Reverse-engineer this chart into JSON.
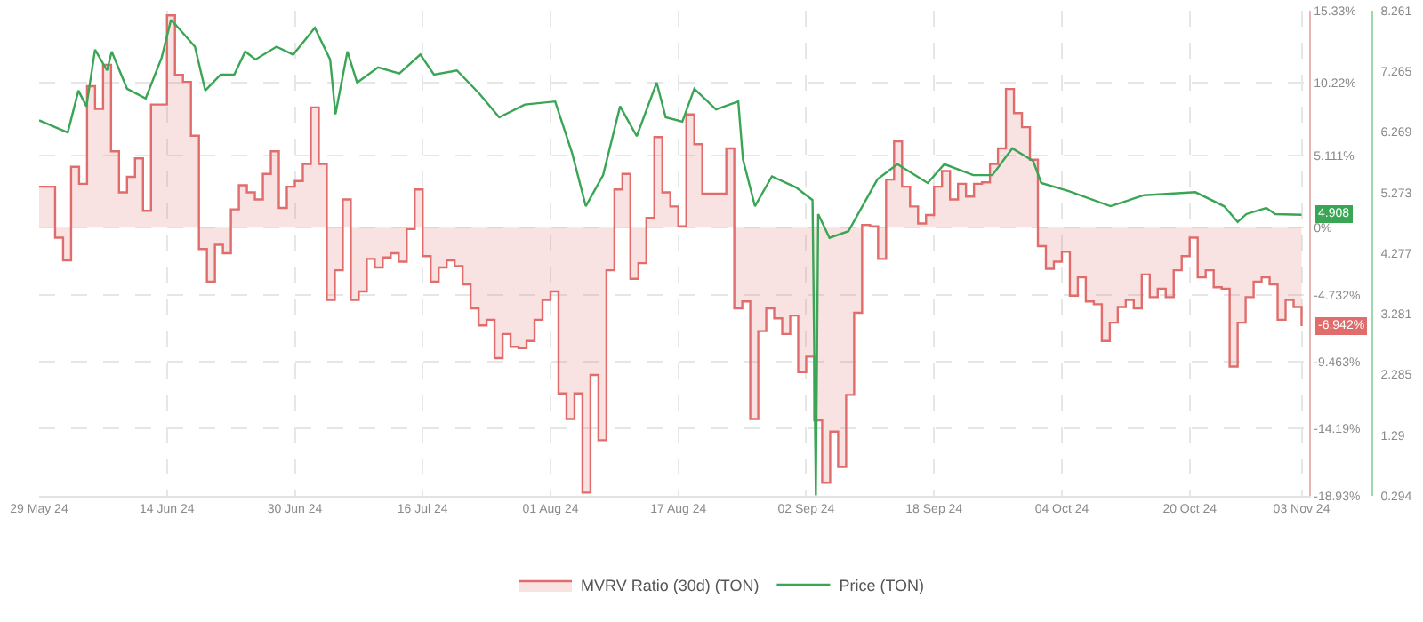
{
  "chart_data": {
    "type": "line",
    "legend": "bottom",
    "grid": true,
    "marker": "none",
    "xlim": [
      "2024-05-29",
      "2024-11-04"
    ],
    "xticks": [
      {
        "value": "2024-05-29",
        "label": "29 May 24"
      },
      {
        "value": "2024-06-14",
        "label": "14 Jun 24"
      },
      {
        "value": "2024-06-30",
        "label": "30 Jun 24"
      },
      {
        "value": "2024-07-16",
        "label": "16 Jul 24"
      },
      {
        "value": "2024-08-01",
        "label": "01 Aug 24"
      },
      {
        "value": "2024-08-17",
        "label": "17 Aug 24"
      },
      {
        "value": "2024-09-02",
        "label": "02 Sep 24"
      },
      {
        "value": "2024-09-18",
        "label": "18 Sep 24"
      },
      {
        "value": "2024-10-04",
        "label": "04 Oct 24"
      },
      {
        "value": "2024-10-20",
        "label": "20 Oct 24"
      },
      {
        "value": "2024-11-03",
        "label": "03 Nov 24"
      }
    ],
    "ylim": [
      -18.93,
      15.33
    ],
    "yticks": [
      {
        "value": 15.33,
        "label": "15.33%"
      },
      {
        "value": 10.22,
        "label": "10.22%"
      },
      {
        "value": 5.111,
        "label": "5.111%"
      },
      {
        "value": 0,
        "label": "0%"
      },
      {
        "value": -4.732,
        "label": "-4.732%"
      },
      {
        "value": -9.463,
        "label": "-9.463%"
      },
      {
        "value": -14.19,
        "label": "-14.19%"
      },
      {
        "value": -18.93,
        "label": "-18.93%"
      }
    ],
    "y2lim": [
      0.294,
      8.261
    ],
    "y2ticks": [
      8.261,
      7.265,
      6.269,
      5.273,
      4.277,
      3.281,
      2.285,
      1.29,
      0.294
    ],
    "series": [
      {
        "name": "MVRV Ratio (30d) (TON)",
        "type": "step",
        "color": "#e06c6c",
        "axis": "y",
        "x": [
          "2024-05-29",
          "2024-05-31",
          "2024-06-01",
          "2024-06-02",
          "2024-06-03",
          "2024-06-04",
          "2024-06-05",
          "2024-06-06",
          "2024-06-07",
          "2024-06-08",
          "2024-06-09",
          "2024-06-10",
          "2024-06-11",
          "2024-06-12",
          "2024-06-14",
          "2024-06-15",
          "2024-06-16",
          "2024-06-17",
          "2024-06-18",
          "2024-06-19",
          "2024-06-20",
          "2024-06-21",
          "2024-06-22",
          "2024-06-23",
          "2024-06-24",
          "2024-06-25",
          "2024-06-26",
          "2024-06-27",
          "2024-06-28",
          "2024-06-29",
          "2024-06-30",
          "2024-07-01",
          "2024-07-02",
          "2024-07-03",
          "2024-07-04",
          "2024-07-05",
          "2024-07-06",
          "2024-07-07",
          "2024-07-08",
          "2024-07-09",
          "2024-07-10",
          "2024-07-11",
          "2024-07-12",
          "2024-07-13",
          "2024-07-14",
          "2024-07-15",
          "2024-07-16",
          "2024-07-17",
          "2024-07-18",
          "2024-07-19",
          "2024-07-20",
          "2024-07-21",
          "2024-07-22",
          "2024-07-23",
          "2024-07-24",
          "2024-07-25",
          "2024-07-26",
          "2024-07-27",
          "2024-07-28",
          "2024-07-29",
          "2024-07-30",
          "2024-07-31",
          "2024-08-01",
          "2024-08-02",
          "2024-08-03",
          "2024-08-04",
          "2024-08-05",
          "2024-08-06",
          "2024-08-07",
          "2024-08-08",
          "2024-08-09",
          "2024-08-10",
          "2024-08-11",
          "2024-08-12",
          "2024-08-13",
          "2024-08-14",
          "2024-08-15",
          "2024-08-16",
          "2024-08-17",
          "2024-08-18",
          "2024-08-19",
          "2024-08-20",
          "2024-08-23",
          "2024-08-24",
          "2024-08-25",
          "2024-08-26",
          "2024-08-27",
          "2024-08-28",
          "2024-08-29",
          "2024-08-30",
          "2024-08-31",
          "2024-09-01",
          "2024-09-02",
          "2024-09-03",
          "2024-09-04",
          "2024-09-05",
          "2024-09-06",
          "2024-09-07",
          "2024-09-08",
          "2024-09-09",
          "2024-09-10",
          "2024-09-11",
          "2024-09-12",
          "2024-09-13",
          "2024-09-14",
          "2024-09-15",
          "2024-09-16",
          "2024-09-17",
          "2024-09-18",
          "2024-09-19",
          "2024-09-20",
          "2024-09-21",
          "2024-09-22",
          "2024-09-23",
          "2024-09-24",
          "2024-09-25",
          "2024-09-26",
          "2024-09-27",
          "2024-09-28",
          "2024-09-29",
          "2024-09-30",
          "2024-10-01",
          "2024-10-02",
          "2024-10-03",
          "2024-10-04",
          "2024-10-05",
          "2024-10-06",
          "2024-10-07",
          "2024-10-08",
          "2024-10-09",
          "2024-10-10",
          "2024-10-11",
          "2024-10-12",
          "2024-10-13",
          "2024-10-14",
          "2024-10-15",
          "2024-10-16",
          "2024-10-17",
          "2024-10-18",
          "2024-10-19",
          "2024-10-20",
          "2024-10-21",
          "2024-10-22",
          "2024-10-23",
          "2024-10-24",
          "2024-10-25",
          "2024-10-26",
          "2024-10-27",
          "2024-10-28",
          "2024-10-29",
          "2024-10-30",
          "2024-10-31",
          "2024-11-01",
          "2024-11-02",
          "2024-11-03"
        ],
        "values": [
          2.9,
          -0.7,
          -2.3,
          4.3,
          3.1,
          10.0,
          8.4,
          11.5,
          5.4,
          2.5,
          3.6,
          4.9,
          1.2,
          8.7,
          15.0,
          10.8,
          10.3,
          6.5,
          -1.5,
          -3.8,
          -1.2,
          -1.8,
          1.3,
          3.0,
          2.5,
          2.0,
          3.8,
          5.4,
          1.4,
          2.9,
          3.3,
          4.5,
          8.5,
          4.5,
          -5.1,
          -3.0,
          2.0,
          -5.1,
          -4.5,
          -2.2,
          -2.8,
          -2.1,
          -1.8,
          -2.4,
          -0.1,
          2.7,
          -2.0,
          -3.8,
          -2.8,
          -2.3,
          -2.7,
          -4.0,
          -5.7,
          -6.9,
          -6.5,
          -9.2,
          -7.5,
          -8.4,
          -8.5,
          -8.0,
          -6.5,
          -5.1,
          -4.5,
          -11.7,
          -13.5,
          -11.7,
          -18.7,
          -10.4,
          -15.0,
          -3.0,
          2.7,
          3.8,
          -3.6,
          -2.5,
          0.7,
          6.4,
          2.5,
          1.5,
          0.1,
          8.0,
          5.9,
          2.4,
          5.6,
          -5.7,
          -5.2,
          -13.5,
          -7.3,
          -5.7,
          -6.4,
          -7.5,
          -6.2,
          -10.2,
          -9.1,
          -13.6,
          -18.0,
          -14.4,
          -16.9,
          -11.8,
          -6.0,
          0.2,
          0.1,
          -2.2,
          3.4,
          6.1,
          2.9,
          1.5,
          0.3,
          0.9,
          2.9,
          4.0,
          2.0,
          3.1,
          2.2,
          3.1,
          3.2,
          4.5,
          5.6,
          9.8,
          8.1,
          7.1,
          4.8,
          -1.3,
          -2.9,
          -2.4,
          -1.7,
          -4.8,
          -3.5,
          -5.2,
          -5.4,
          -8.0,
          -6.7,
          -5.6,
          -5.1,
          -5.7,
          -3.3,
          -4.9,
          -4.3,
          -4.9,
          -3.0,
          -2.0,
          -0.7,
          -3.5,
          -3.0,
          -4.2,
          -4.3,
          -9.8,
          -6.7,
          -4.9,
          -3.8,
          -3.5,
          -4.0,
          -6.5,
          -5.1,
          -5.6,
          -6.942
        ],
        "value_labels": [
          null,
          null,
          null,
          null,
          null,
          null,
          null,
          null,
          null,
          null,
          null,
          null,
          null,
          null,
          null,
          null,
          null,
          null,
          null,
          null,
          null,
          null,
          null,
          null,
          null,
          null,
          null,
          null,
          null,
          null,
          null,
          null,
          null,
          null,
          null,
          null,
          null,
          null,
          null,
          null,
          null,
          null,
          null,
          null,
          null,
          null,
          null,
          null,
          null,
          null,
          null,
          null,
          null,
          null,
          null,
          null,
          null,
          null,
          null,
          null,
          null,
          null,
          null,
          null,
          null,
          null,
          null,
          null,
          null,
          null,
          null,
          null,
          null,
          null,
          null,
          null,
          null,
          null,
          null,
          null,
          null,
          null,
          null,
          null,
          null,
          null,
          null,
          null,
          null,
          null,
          null,
          null,
          null,
          null,
          null,
          null,
          null,
          null,
          null,
          null,
          null,
          null,
          null,
          null,
          null,
          null,
          null,
          null,
          null,
          null,
          null,
          null,
          null,
          null,
          null,
          null,
          null,
          null,
          null,
          null,
          null,
          null,
          null,
          null,
          null,
          null,
          null,
          null,
          null,
          null,
          null,
          null,
          null,
          null,
          null,
          null,
          null,
          null,
          null,
          null,
          null,
          null,
          null,
          null,
          null,
          null,
          null,
          null,
          null,
          null,
          null,
          null,
          null,
          null,
          "-6.942%"
        ]
      },
      {
        "name": "Price (TON)",
        "type": "line",
        "color": "#3aa655",
        "axis": "y2",
        "x": [
          "2024-05-29",
          "2024-06-01T14:00",
          "2024-06-02T22:00",
          "2024-06-03T22:00",
          "2024-06-05",
          "2024-06-06T12:00",
          "2024-06-07T02:00",
          "2024-06-09",
          "2024-06-11T08:00",
          "2024-06-13T08:00",
          "2024-06-14T12:00",
          "2024-06-15T10:00",
          "2024-06-17T12:00",
          "2024-06-18T19:00",
          "2024-06-20T17:00",
          "2024-06-22T10:00",
          "2024-06-23T19:00",
          "2024-06-25T02:00",
          "2024-06-27T17:00",
          "2024-06-29T19:00",
          "2024-07-02T12:00",
          "2024-07-04T10:00",
          "2024-07-05T02:00",
          "2024-07-06T14:00",
          "2024-07-07T19:00",
          "2024-07-10T10:00",
          "2024-07-13T02:00",
          "2024-07-15T17:00",
          "2024-07-17T10:00",
          "2024-07-20T07:00",
          "2024-07-23T02:00",
          "2024-07-25T14:00",
          "2024-07-28T19:00",
          "2024-08-01T14:00",
          "2024-08-03T17:00",
          "2024-08-05T10:00",
          "2024-08-07T14:00",
          "2024-08-09T17:00",
          "2024-08-11T19:00",
          "2024-08-14T07:00",
          "2024-08-15T10:00",
          "2024-08-17T12:00",
          "2024-08-19",
          "2024-08-21T17:00",
          "2024-08-24T12:00",
          "2024-08-25T02:00",
          "2024-08-26T14:00",
          "2024-08-28T17:00",
          "2024-08-31T17:00",
          "2024-09-02T19:00",
          "2024-09-03T05:00",
          "2024-09-03T12:00",
          "2024-09-04T22:00",
          "2024-09-07T07:00",
          "2024-09-10T22:00",
          "2024-09-13T10:00",
          "2024-09-17T05:00",
          "2024-09-19T07:00",
          "2024-09-22T22:00",
          "2024-09-25T07:00",
          "2024-09-27T19:00",
          "2024-09-30T10:00",
          "2024-10-01T10:00",
          "2024-10-04T19:00",
          "2024-10-10T02:00",
          "2024-10-14T07:00",
          "2024-10-20T17:00",
          "2024-10-24T07:00",
          "2024-10-26",
          "2024-10-27T02:00",
          "2024-10-29T14:00",
          "2024-10-30T17:00",
          "2024-11-03"
        ],
        "values": [
          6.46,
          6.26,
          6.95,
          6.69,
          7.62,
          7.28,
          7.59,
          6.98,
          6.82,
          7.49,
          8.11,
          7.98,
          7.67,
          6.95,
          7.21,
          7.21,
          7.59,
          7.46,
          7.67,
          7.54,
          7.98,
          7.46,
          6.56,
          7.59,
          7.08,
          7.33,
          7.23,
          7.54,
          7.21,
          7.28,
          6.9,
          6.51,
          6.72,
          6.77,
          5.92,
          5.05,
          5.56,
          6.69,
          6.2,
          7.08,
          6.51,
          6.44,
          6.98,
          6.64,
          6.77,
          5.82,
          5.05,
          5.54,
          5.36,
          5.15,
          0.3,
          4.92,
          4.53,
          4.64,
          5.49,
          5.74,
          5.43,
          5.74,
          5.56,
          5.56,
          6.0,
          5.79,
          5.43,
          5.3,
          5.05,
          5.23,
          5.28,
          5.05,
          4.79,
          4.92,
          5.02,
          4.92,
          4.908
        ],
        "value_labels": [
          null,
          null,
          null,
          null,
          null,
          null,
          null,
          null,
          null,
          null,
          null,
          null,
          null,
          null,
          null,
          null,
          null,
          null,
          null,
          null,
          null,
          null,
          null,
          null,
          null,
          null,
          null,
          null,
          null,
          null,
          null,
          null,
          null,
          null,
          null,
          null,
          null,
          null,
          null,
          null,
          null,
          null,
          null,
          null,
          null,
          null,
          null,
          null,
          null,
          null,
          null,
          null,
          null,
          null,
          null,
          null,
          null,
          null,
          null,
          null,
          null,
          null,
          null,
          null,
          null,
          null,
          null,
          null,
          null,
          null,
          null,
          null,
          "4.908"
        ]
      }
    ]
  }
}
